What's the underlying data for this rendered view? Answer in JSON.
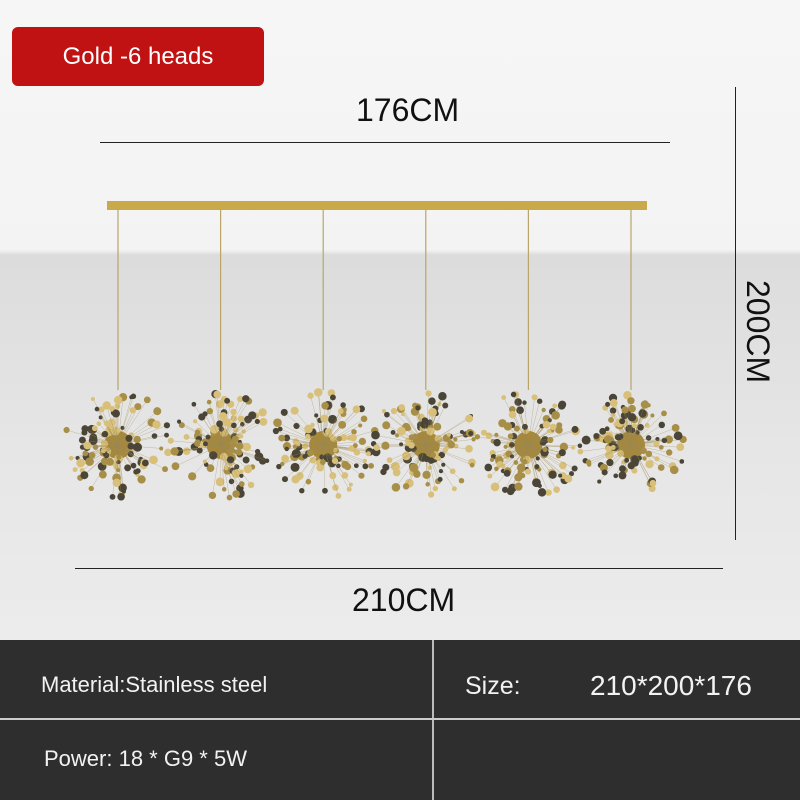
{
  "badge": {
    "label": "Gold -6 heads",
    "color": "#c01212"
  },
  "dimensions": {
    "top_width": "176CM",
    "height": "200CM",
    "bottom_width": "210CM"
  },
  "product": {
    "heads": 6,
    "finish_color": "#c9a94a"
  },
  "specs": {
    "material": "Material:Stainless steel",
    "size_label": "Size:",
    "size_value": "210*200*176",
    "power": "Power: 18 * G9 * 5W"
  }
}
